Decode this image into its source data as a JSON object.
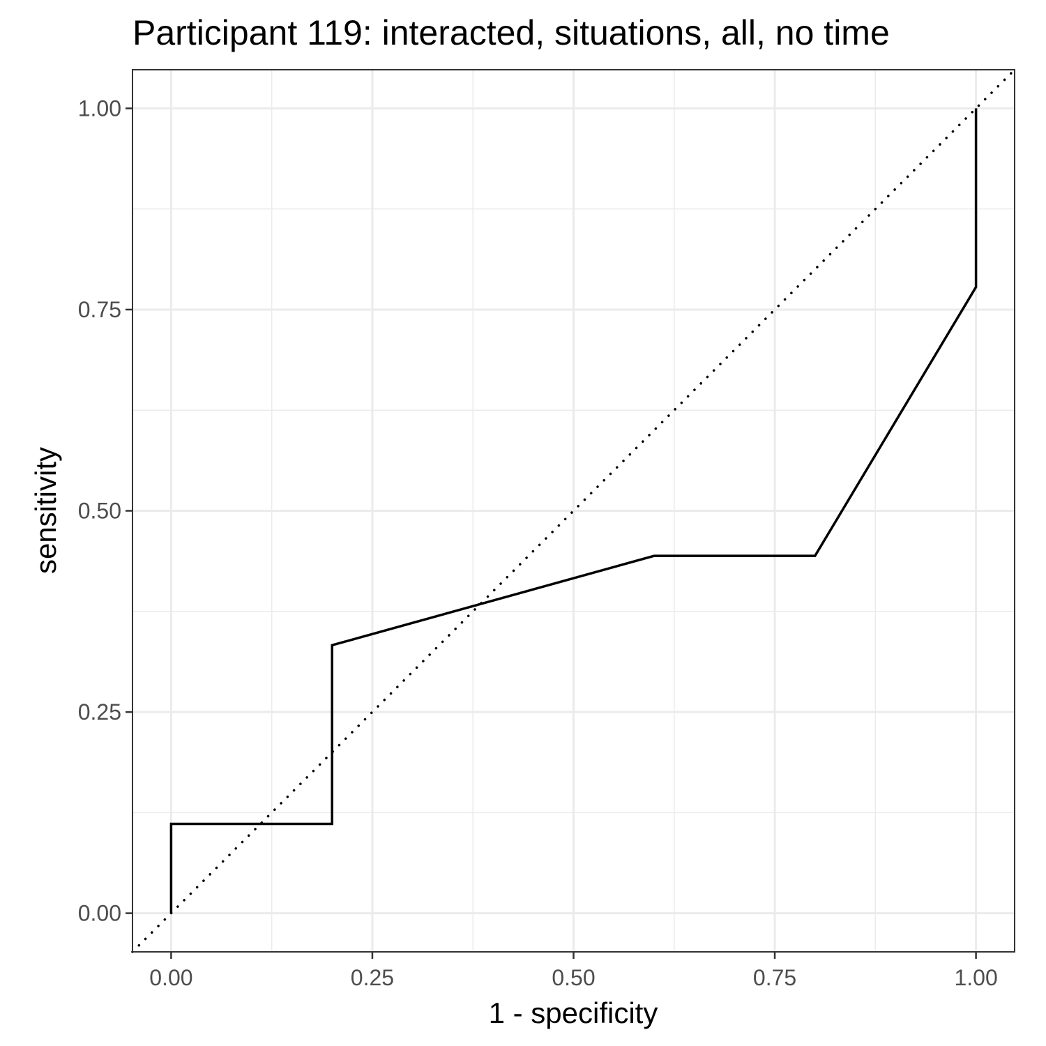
{
  "chart_data": {
    "type": "line",
    "title": "Participant 119: interacted, situations, all, no time",
    "xlabel": "1 - specificity",
    "ylabel": "sensitivity",
    "xlim": [
      -0.048,
      1.048
    ],
    "ylim": [
      -0.048,
      1.048
    ],
    "x_ticks": [
      "0.00",
      "0.25",
      "0.50",
      "0.75",
      "1.00"
    ],
    "y_ticks": [
      "0.00",
      "0.25",
      "0.50",
      "0.75",
      "1.00"
    ],
    "grid": true,
    "series": [
      {
        "x": [
          0.0,
          0.0,
          0.2,
          0.2,
          0.6,
          0.8,
          1.0,
          1.0
        ],
        "y": [
          0.0,
          0.111,
          0.111,
          0.333,
          0.444,
          0.444,
          0.778,
          1.0
        ]
      }
    ],
    "reference_line": {
      "style": "dotted",
      "x": [
        -0.048,
        1.048
      ],
      "y": [
        -0.048,
        1.048
      ]
    },
    "colors": {
      "line": "#000000",
      "grid": "#ebebeb",
      "panel_border": "#333333",
      "tick_label": "#4d4d4d"
    }
  }
}
